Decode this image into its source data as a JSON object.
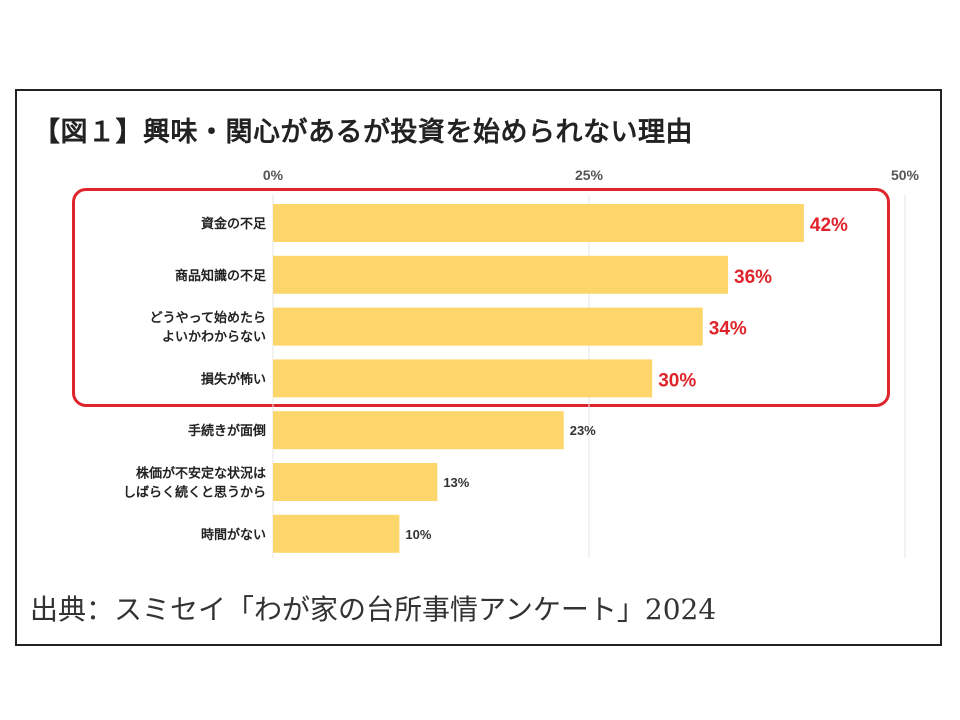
{
  "title": "【図１】興味・関心があるが投資を始められない理由",
  "source": "出典：スミセイ「わが家の台所事情アンケート」2024",
  "colors": {
    "bar": "#fcd66b",
    "highlight": "#e0242b",
    "grid": "#e6e6e6",
    "text": "#222222"
  },
  "chart_data": {
    "type": "bar",
    "orientation": "horizontal",
    "title": "【図１】興味・関心があるが投資を始められない理由",
    "categories": [
      [
        "資金の不足"
      ],
      [
        "商品知識の不足"
      ],
      [
        "どうやって始めたら",
        "よいかわからない"
      ],
      [
        "損失が怖い"
      ],
      [
        "手続きが面倒"
      ],
      [
        "株価が不安定な状況は",
        "しばらく続くと思うから"
      ],
      [
        "時間がない"
      ]
    ],
    "values": [
      42,
      36,
      34,
      30,
      23,
      13,
      10
    ],
    "value_labels": [
      "42%",
      "36%",
      "34%",
      "30%",
      "23%",
      "13%",
      "10%"
    ],
    "highlighted": [
      true,
      true,
      true,
      true,
      false,
      false,
      false
    ],
    "xlim": [
      0,
      50
    ],
    "xticks": [
      0,
      25,
      50
    ],
    "xtick_labels": [
      "0%",
      "25%",
      "50%"
    ],
    "xaxis_position": "top",
    "grid": true
  }
}
